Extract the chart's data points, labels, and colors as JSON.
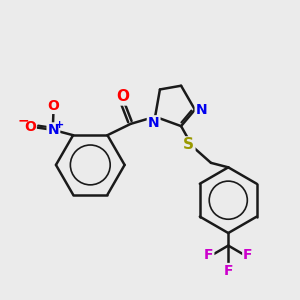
{
  "background_color": "#ebebeb",
  "bond_color": "#1a1a1a",
  "bond_width": 1.8,
  "atom_colors": {
    "O": "#ff0000",
    "N": "#0000ee",
    "S": "#999900",
    "F": "#cc00cc",
    "C": "#1a1a1a"
  },
  "figsize": [
    3.0,
    3.0
  ],
  "dpi": 100
}
